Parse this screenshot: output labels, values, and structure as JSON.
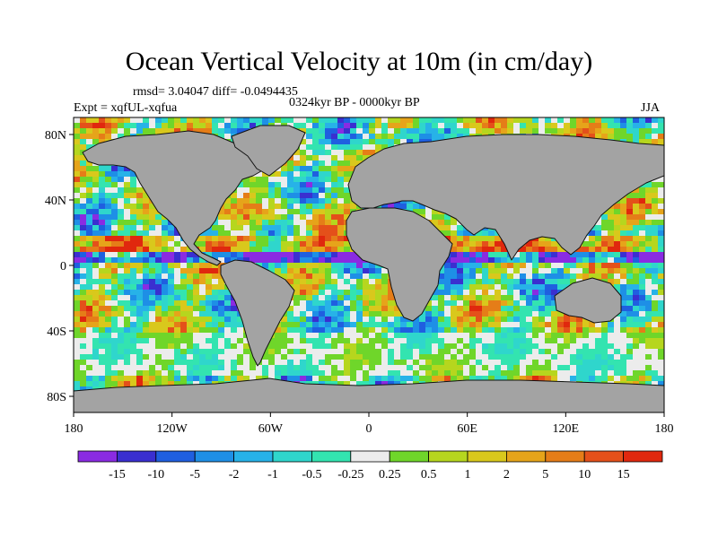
{
  "title": "Ocean Vertical Velocity at 10m (in cm/day)",
  "stats": {
    "rmsd_diff": "rmsd= 3.04047  diff= -0.0494435",
    "period": "0324kyr BP - 0000kyr BP",
    "experiment": "Expt = xqfUL-xqfua",
    "season": "JJA"
  },
  "axes": {
    "lat_labels": [
      "80N",
      "40N",
      "0",
      "40S",
      "80S"
    ],
    "lon_labels": [
      "180",
      "120W",
      "60W",
      "0",
      "60E",
      "120E",
      "180"
    ]
  },
  "colorbar": {
    "labels": [
      "-15",
      "-10",
      "-5",
      "-2",
      "-1",
      "-0.5",
      "-0.25",
      "0.25",
      "0.5",
      "1",
      "2",
      "5",
      "10",
      "15"
    ],
    "colors": [
      "#8a2be2",
      "#3a2fd0",
      "#1f5fe0",
      "#1e8fe6",
      "#27b2e8",
      "#2fd6cc",
      "#33e4b0",
      "#ececec",
      "#6fd62a",
      "#b6d61e",
      "#d9c81c",
      "#e6a41a",
      "#e57d18",
      "#e4501a",
      "#e0280e"
    ]
  },
  "colors": {
    "land": "#a3a3a3",
    "ocean_neutral": "#ececec"
  }
}
